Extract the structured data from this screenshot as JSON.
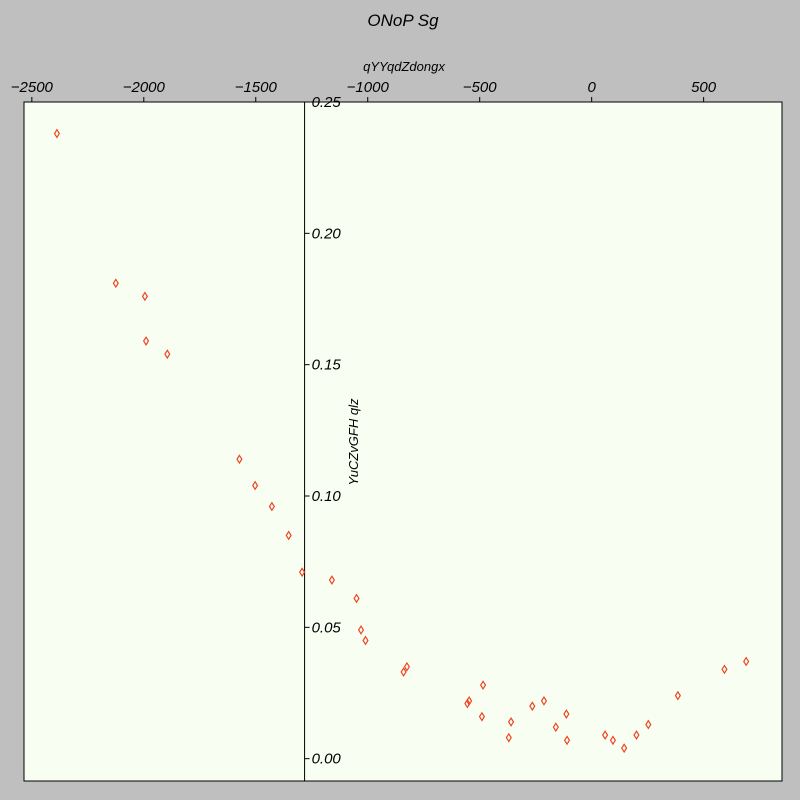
{
  "chart_data": {
    "type": "scatter",
    "title": "ONoP Sg",
    "xlabel": "qYYqdZdongx",
    "ylabel": "YuCZvGFH qlz",
    "xlim": [
      -2535,
      850
    ],
    "ylim": [
      -0.0085,
      0.25
    ],
    "xticks": [
      -2500,
      -2000,
      -1500,
      -1000,
      -500,
      0,
      500
    ],
    "xtick_labels": [
      "−2500",
      "−2000",
      "−1500",
      "−1000",
      "−500",
      "0",
      "500"
    ],
    "yticks": [
      0.0,
      0.05,
      0.1,
      0.15,
      0.2,
      0.25
    ],
    "ytick_labels": [
      "0.00",
      "0.05",
      "0.10",
      "0.15",
      "0.20",
      "0.25"
    ],
    "x_axis_position": "top",
    "y_axis_at_x": -1282,
    "grid": false,
    "legend": "none",
    "marker": "diamond",
    "colors": {
      "background": "#bfbfbf",
      "plot_area": "#f8fff2",
      "marker": "#ee4422",
      "axis": "#000000"
    },
    "points": [
      {
        "x": -2388,
        "y": 0.238
      },
      {
        "x": -2125,
        "y": 0.181
      },
      {
        "x": -1995,
        "y": 0.176
      },
      {
        "x": -1990,
        "y": 0.159
      },
      {
        "x": -1895,
        "y": 0.154
      },
      {
        "x": -1573,
        "y": 0.114
      },
      {
        "x": -1503,
        "y": 0.104
      },
      {
        "x": -1428,
        "y": 0.096
      },
      {
        "x": -1353,
        "y": 0.085
      },
      {
        "x": -1293,
        "y": 0.071
      },
      {
        "x": -1160,
        "y": 0.068
      },
      {
        "x": -1050,
        "y": 0.061
      },
      {
        "x": -1030,
        "y": 0.049
      },
      {
        "x": -1010,
        "y": 0.045
      },
      {
        "x": -840,
        "y": 0.033
      },
      {
        "x": -825,
        "y": 0.035
      },
      {
        "x": -555,
        "y": 0.021
      },
      {
        "x": -547,
        "y": 0.022
      },
      {
        "x": -490,
        "y": 0.016
      },
      {
        "x": -485,
        "y": 0.028
      },
      {
        "x": -370,
        "y": 0.008
      },
      {
        "x": -360,
        "y": 0.014
      },
      {
        "x": -265,
        "y": 0.02
      },
      {
        "x": -213,
        "y": 0.022
      },
      {
        "x": -160,
        "y": 0.012
      },
      {
        "x": -113,
        "y": 0.017
      },
      {
        "x": -110,
        "y": 0.007
      },
      {
        "x": 60,
        "y": 0.009
      },
      {
        "x": 95,
        "y": 0.007
      },
      {
        "x": 145,
        "y": 0.004
      },
      {
        "x": 200,
        "y": 0.009
      },
      {
        "x": 253,
        "y": 0.013
      },
      {
        "x": 385,
        "y": 0.024
      },
      {
        "x": 593,
        "y": 0.034
      },
      {
        "x": 690,
        "y": 0.037
      }
    ]
  }
}
